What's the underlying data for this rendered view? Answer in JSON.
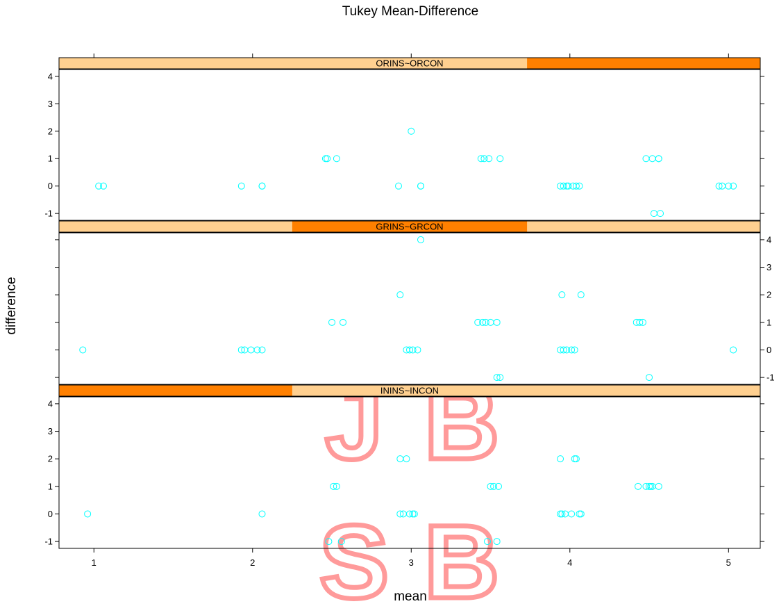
{
  "colors": {
    "points": "#00FFFF",
    "strip_bg": "#FFD090",
    "strip_fg": "#FF8000",
    "watermark": "#FF9A9A"
  },
  "watermark": {
    "letters": [
      "J",
      "B",
      "S",
      "B"
    ]
  },
  "chart_data": {
    "type": "scatter",
    "title": "Tukey Mean-Difference",
    "xlabel": "mean",
    "ylabel": "difference",
    "xlim": [
      0.78,
      5.2
    ],
    "ylim": [
      -1.25,
      4.25
    ],
    "xticks": [
      1,
      2,
      3,
      4,
      5
    ],
    "yticks": [
      -1,
      0,
      1,
      2,
      3,
      4
    ],
    "grid": false,
    "legend": "none",
    "panels": [
      {
        "label": "ORINS~ORCON",
        "level_range": [
          3.73,
          5.2
        ],
        "points": [
          [
            1.03,
            0
          ],
          [
            1.06,
            0
          ],
          [
            1.93,
            0
          ],
          [
            2.06,
            0
          ],
          [
            2.06,
            0
          ],
          [
            2.46,
            1
          ],
          [
            2.47,
            1
          ],
          [
            2.53,
            1
          ],
          [
            2.92,
            0
          ],
          [
            3.0,
            2
          ],
          [
            3.06,
            0
          ],
          [
            3.06,
            0
          ],
          [
            3.44,
            1
          ],
          [
            3.46,
            1
          ],
          [
            3.49,
            1
          ],
          [
            3.56,
            1
          ],
          [
            3.94,
            0
          ],
          [
            3.96,
            0
          ],
          [
            3.98,
            0
          ],
          [
            3.99,
            0
          ],
          [
            4.02,
            0
          ],
          [
            4.04,
            0
          ],
          [
            4.06,
            0
          ],
          [
            4.48,
            1
          ],
          [
            4.52,
            1
          ],
          [
            4.56,
            1
          ],
          [
            4.56,
            1
          ],
          [
            4.53,
            -1
          ],
          [
            4.57,
            -1
          ],
          [
            4.94,
            0
          ],
          [
            4.96,
            0
          ],
          [
            5.0,
            0
          ],
          [
            5.03,
            0
          ]
        ]
      },
      {
        "label": "GRINS~GRCON",
        "level_range": [
          2.25,
          3.73
        ],
        "points": [
          [
            0.93,
            0
          ],
          [
            1.93,
            0
          ],
          [
            1.95,
            0
          ],
          [
            1.99,
            0
          ],
          [
            2.03,
            0
          ],
          [
            2.06,
            0
          ],
          [
            2.5,
            1
          ],
          [
            2.57,
            1
          ],
          [
            2.93,
            2
          ],
          [
            2.97,
            0
          ],
          [
            2.99,
            0
          ],
          [
            3.01,
            0
          ],
          [
            3.04,
            0
          ],
          [
            3.06,
            4
          ],
          [
            3.42,
            1
          ],
          [
            3.45,
            1
          ],
          [
            3.47,
            1
          ],
          [
            3.5,
            1
          ],
          [
            3.54,
            1
          ],
          [
            3.54,
            -1
          ],
          [
            3.56,
            -1
          ],
          [
            3.94,
            0
          ],
          [
            3.96,
            0
          ],
          [
            3.98,
            0
          ],
          [
            4.01,
            0
          ],
          [
            4.03,
            0
          ],
          [
            3.95,
            2
          ],
          [
            4.07,
            2
          ],
          [
            4.42,
            1
          ],
          [
            4.44,
            1
          ],
          [
            4.46,
            1
          ],
          [
            4.5,
            -1
          ],
          [
            5.03,
            0
          ]
        ]
      },
      {
        "label": "ININS~INCON",
        "level_range": [
          0.78,
          2.25
        ],
        "points": [
          [
            0.96,
            0
          ],
          [
            2.06,
            0
          ],
          [
            2.48,
            -1
          ],
          [
            2.51,
            1
          ],
          [
            2.53,
            1
          ],
          [
            2.56,
            -1
          ],
          [
            2.93,
            0
          ],
          [
            2.95,
            0
          ],
          [
            2.93,
            2
          ],
          [
            2.97,
            2
          ],
          [
            2.99,
            0
          ],
          [
            3.01,
            0
          ],
          [
            3.02,
            0
          ],
          [
            3.48,
            -1
          ],
          [
            3.5,
            1
          ],
          [
            3.52,
            1
          ],
          [
            3.55,
            1
          ],
          [
            3.54,
            -1
          ],
          [
            3.94,
            2
          ],
          [
            3.94,
            0
          ],
          [
            3.95,
            0
          ],
          [
            3.97,
            0
          ],
          [
            4.01,
            0
          ],
          [
            4.03,
            2
          ],
          [
            4.04,
            2
          ],
          [
            4.06,
            0
          ],
          [
            4.07,
            0
          ],
          [
            4.43,
            1
          ],
          [
            4.48,
            1
          ],
          [
            4.5,
            1
          ],
          [
            4.51,
            1
          ],
          [
            4.52,
            1
          ],
          [
            4.56,
            1
          ]
        ]
      }
    ]
  }
}
